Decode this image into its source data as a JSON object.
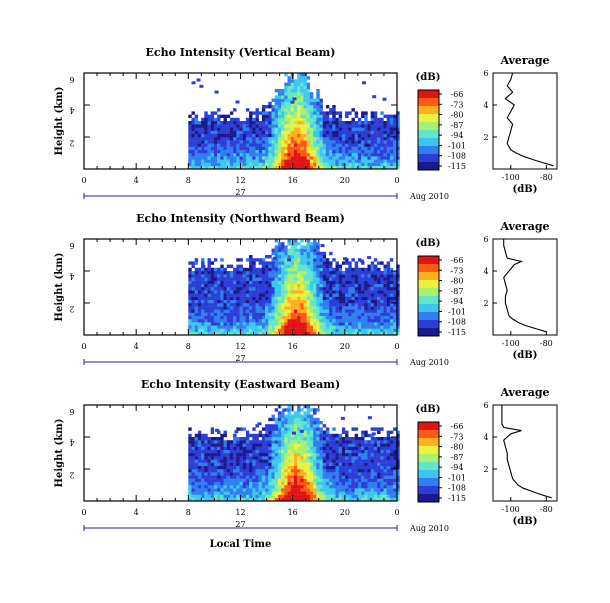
{
  "colors": {
    "scale": [
      "#1a1a8c",
      "#2b3fd6",
      "#2f7ff0",
      "#3cc6f0",
      "#63e6c8",
      "#a8f070",
      "#eef040",
      "#ffb020",
      "#ff5a14",
      "#e01414"
    ],
    "axis": "#000000",
    "blank": "#ffffff"
  },
  "chart_data": [
    {
      "type": "heatmap",
      "title": "Echo Intensity (Vertical Beam)",
      "ylabel": "Height (km)",
      "xlabel": "",
      "x_ticks": [
        "0",
        "4",
        "8",
        "12",
        "16",
        "20",
        "0"
      ],
      "y_ticks": [
        "2",
        "4",
        "6"
      ],
      "date_row": {
        "day": "27",
        "month_year": "Aug 2010"
      },
      "xlim_hours": [
        0,
        24
      ],
      "ylim_km": [
        0,
        6
      ],
      "data_start_hour": 8,
      "colorbar": {
        "label": "(dB)",
        "ticks": [
          "-66",
          "-73",
          "-80",
          "-87",
          "-94",
          "-101",
          "-108",
          "-115"
        ],
        "range": [
          -115,
          -66
        ]
      },
      "echo_top_km": 3.6,
      "profile": {
        "title": "Average",
        "xlabel": "(dB)",
        "x_ticks": [
          "-100",
          "-80"
        ],
        "y_ticks": [
          "2",
          "4",
          "6"
        ],
        "xlim": [
          -110,
          -74
        ],
        "height_km": [
          0.2,
          0.4,
          0.6,
          0.8,
          1.0,
          1.2,
          1.4,
          1.6,
          2.0,
          2.4,
          2.8,
          3.2,
          3.6,
          4.0,
          4.4,
          4.8,
          5.2,
          5.6,
          6.0
        ],
        "db": [
          -76,
          -82,
          -88,
          -93,
          -97,
          -100,
          -101,
          -102,
          -101,
          -100,
          -99,
          -102,
          -100,
          -98,
          -103,
          -99,
          -102,
          -100,
          -99
        ]
      }
    },
    {
      "type": "heatmap",
      "title": "Echo Intensity (Northward Beam)",
      "ylabel": "Height (km)",
      "xlabel": "",
      "x_ticks": [
        "0",
        "4",
        "8",
        "12",
        "16",
        "20",
        "0"
      ],
      "y_ticks": [
        "2",
        "4",
        "6"
      ],
      "date_row": {
        "day": "27",
        "month_year": "Aug 2010"
      },
      "xlim_hours": [
        0,
        24
      ],
      "ylim_km": [
        0,
        6
      ],
      "data_start_hour": 8,
      "colorbar": {
        "label": "(dB)",
        "ticks": [
          "-66",
          "-73",
          "-80",
          "-87",
          "-94",
          "-101",
          "-108",
          "-115"
        ],
        "range": [
          -115,
          -66
        ]
      },
      "echo_top_km": 4.6,
      "profile": {
        "title": "Average",
        "xlabel": "(dB)",
        "x_ticks": [
          "-100",
          "-80"
        ],
        "y_ticks": [
          "2",
          "4",
          "6"
        ],
        "xlim": [
          -110,
          -74
        ],
        "height_km": [
          0.2,
          0.4,
          0.6,
          0.8,
          1.0,
          1.2,
          1.6,
          2.0,
          2.4,
          2.8,
          3.2,
          3.6,
          4.0,
          4.4,
          4.6,
          4.8,
          5.2,
          5.6,
          6.0
        ],
        "db": [
          -80,
          -86,
          -92,
          -96,
          -99,
          -101,
          -102,
          -103,
          -103,
          -102,
          -103,
          -104,
          -101,
          -98,
          -94,
          -102,
          -103,
          -104,
          -104
        ]
      }
    },
    {
      "type": "heatmap",
      "title": "Echo Intensity (Eastward Beam)",
      "ylabel": "Height (km)",
      "xlabel": "Local Time",
      "x_ticks": [
        "0",
        "4",
        "8",
        "12",
        "16",
        "20",
        "0"
      ],
      "y_ticks": [
        "2",
        "4",
        "6"
      ],
      "date_row": {
        "day": "27",
        "month_year": "Aug 2010"
      },
      "xlim_hours": [
        0,
        24
      ],
      "ylim_km": [
        0,
        6
      ],
      "data_start_hour": 8,
      "colorbar": {
        "label": "(dB)",
        "ticks": [
          "-66",
          "-73",
          "-80",
          "-87",
          "-94",
          "-101",
          "-108",
          "-115"
        ],
        "range": [
          -115,
          -66
        ]
      },
      "echo_top_km": 4.4,
      "profile": {
        "title": "Average",
        "xlabel": "(dB)",
        "x_ticks": [
          "-100",
          "-80"
        ],
        "y_ticks": [
          "2",
          "4",
          "6"
        ],
        "xlim": [
          -110,
          -74
        ],
        "height_km": [
          0.2,
          0.4,
          0.6,
          0.8,
          1.0,
          1.4,
          1.8,
          2.2,
          2.6,
          3.0,
          3.4,
          3.8,
          4.2,
          4.4,
          4.6,
          4.8,
          5.2,
          5.6,
          6.0
        ],
        "db": [
          -77,
          -83,
          -88,
          -93,
          -96,
          -99,
          -100,
          -101,
          -102,
          -102,
          -103,
          -104,
          -100,
          -94,
          -104,
          -105,
          -105,
          -105,
          -105
        ]
      }
    }
  ]
}
